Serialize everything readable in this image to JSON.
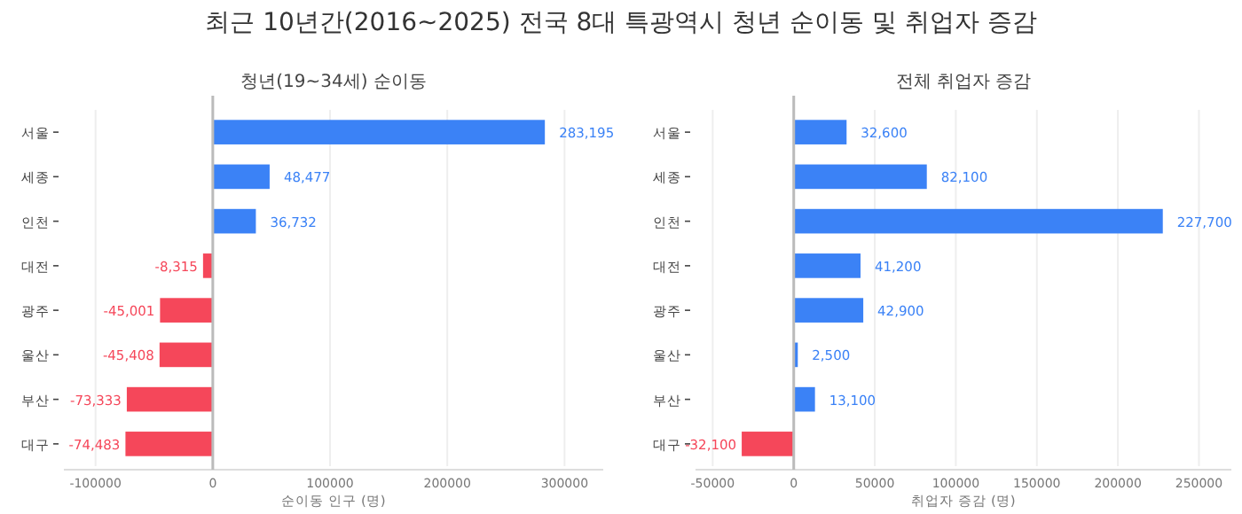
{
  "chart_data": [
    {
      "type": "bar",
      "orientation": "horizontal",
      "title": "청년(19~34세) 순이동",
      "xlabel": "순이동 인구 (명)",
      "annotations": [
        "최근 10년간(2016~2025) 전국 8대 특광역시 청년 순이동 및 취업자 증감"
      ],
      "categories": [
        "서울",
        "세종",
        "인천",
        "대전",
        "광주",
        "울산",
        "부산",
        "대구"
      ],
      "values": [
        283195,
        48477,
        36732,
        -8315,
        -45001,
        -45408,
        -73333,
        -74483
      ],
      "value_labels": [
        "283,195",
        "48,477",
        "36,732",
        "-8,315",
        "-45,001",
        "-45,408",
        "-73,333",
        "-74,483"
      ],
      "colors": [
        "#3b82f6",
        "#3b82f6",
        "#3b82f6",
        "#f5475a",
        "#f5475a",
        "#f5475a",
        "#f5475a",
        "#f5475a"
      ],
      "xlim": [
        -127000,
        333000
      ],
      "xticks": [
        -100000,
        0,
        100000,
        200000,
        300000
      ],
      "grid": "x",
      "ref_lines": [
        {
          "axis": "x",
          "value": 0,
          "color": "#bbbbbb"
        }
      ]
    },
    {
      "type": "bar",
      "orientation": "horizontal",
      "title": "전체 취업자 증감",
      "xlabel": "취업자 증감 (명)",
      "categories": [
        "서울",
        "세종",
        "인천",
        "대전",
        "광주",
        "울산",
        "부산",
        "대구"
      ],
      "values": [
        32600,
        82100,
        227700,
        41200,
        42900,
        2500,
        13100,
        -32100
      ],
      "value_labels": [
        "32,600",
        "82,100",
        "227,700",
        "41,200",
        "42,900",
        "2,500",
        "13,100",
        "-32,100"
      ],
      "colors": [
        "#3b82f6",
        "#3b82f6",
        "#3b82f6",
        "#3b82f6",
        "#3b82f6",
        "#3b82f6",
        "#3b82f6",
        "#f5475a"
      ],
      "xlim": [
        -60600,
        270000
      ],
      "xticks": [
        -50000,
        0,
        50000,
        100000,
        150000,
        200000,
        250000
      ],
      "grid": "x",
      "ref_lines": [
        {
          "axis": "x",
          "value": 0,
          "color": "#bbbbbb"
        }
      ]
    }
  ]
}
